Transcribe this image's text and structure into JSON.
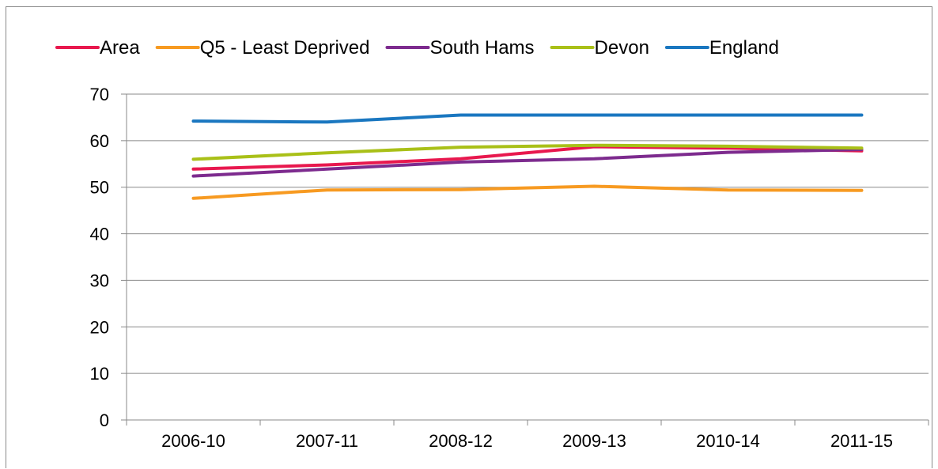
{
  "chart_data": {
    "type": "line",
    "title": "",
    "xlabel": "",
    "ylabel": "",
    "categories": [
      "2006-10",
      "2007-11",
      "2008-12",
      "2009-13",
      "2010-14",
      "2011-15"
    ],
    "ylim": [
      0,
      70
    ],
    "yticks": [
      "0",
      "10",
      "20",
      "30",
      "40",
      "50",
      "60",
      "70"
    ],
    "grid": "horizontal",
    "legend_position": "top",
    "series": [
      {
        "name": "Area",
        "color": "#E8184E",
        "values": [
          53.9,
          54.8,
          56.1,
          58.7,
          58.4,
          57.8
        ]
      },
      {
        "name": "Q5 - Least Deprived",
        "color": "#F79A21",
        "values": [
          47.6,
          49.4,
          49.5,
          50.2,
          49.4,
          49.3
        ]
      },
      {
        "name": "South Hams",
        "color": "#7D2B8E",
        "values": [
          52.4,
          53.9,
          55.4,
          56.1,
          57.5,
          58.1
        ]
      },
      {
        "name": "Devon",
        "color": "#A9C018",
        "values": [
          56.0,
          57.4,
          58.6,
          59.0,
          58.8,
          58.4
        ]
      },
      {
        "name": "England",
        "color": "#1A77C0",
        "values": [
          64.2,
          64.0,
          65.5,
          65.5,
          65.5,
          65.5
        ]
      }
    ]
  }
}
